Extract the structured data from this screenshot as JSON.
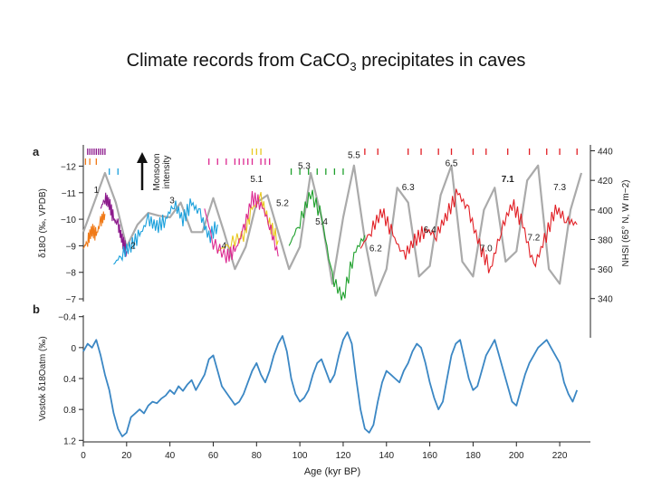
{
  "slide": {
    "title_pre": "Climate records from Ca",
    "title_co": "CO",
    "title_sub": "3",
    "title_post": " precipitates in caves"
  },
  "colors": {
    "nhsi": "#aaaaaa",
    "vostok": "#3b87c4",
    "hulu_orange": "#f07a18",
    "hulu_purple": "#8c1a8c",
    "hulu_blue": "#1aa0dc",
    "yellow": "#e8c81e",
    "pink": "#dc2890",
    "green": "#1ea02c",
    "red": "#e11e24"
  },
  "chart_data": [
    {
      "panel": "a",
      "type": "line",
      "title": "",
      "xlabel": "Age (kyr BP)",
      "xlim": [
        0,
        230
      ],
      "ylabel_left": "δ18O (‰, VPDB)",
      "ylim_left": [
        -12.8,
        -6.9
      ],
      "yticks_left": [
        -12,
        -11,
        -10,
        -9,
        -8,
        -7
      ],
      "ylabel_right": "NHSI (65° N, W m−2)",
      "ylim_right": [
        338,
        444
      ],
      "yticks_right": [
        340,
        360,
        380,
        400,
        420,
        440
      ],
      "monsoon_arrow_label": [
        "Monsoon",
        "intensity"
      ],
      "insolation": {
        "name": "NHSI",
        "x": [
          0,
          5,
          10,
          15,
          20,
          25,
          30,
          35,
          40,
          45,
          50,
          55,
          60,
          65,
          70,
          75,
          80,
          85,
          90,
          95,
          100,
          105,
          110,
          115,
          120,
          125,
          130,
          135,
          140,
          145,
          150,
          155,
          160,
          165,
          170,
          175,
          180,
          185,
          190,
          195,
          200,
          205,
          210,
          215,
          220,
          225,
          230
        ],
        "y": [
          385,
          405,
          425,
          405,
          375,
          390,
          398,
          396,
          395,
          405,
          385,
          385,
          408,
          385,
          360,
          375,
          405,
          410,
          385,
          360,
          375,
          425,
          395,
          350,
          395,
          430,
          380,
          342,
          360,
          415,
          405,
          355,
          362,
          410,
          430,
          365,
          355,
          400,
          415,
          365,
          372,
          420,
          430,
          360,
          350,
          400,
          425
        ]
      },
      "series": [
        {
          "name": "Hulu-orange",
          "color_key": "hulu_orange",
          "x": [
            0,
            2,
            4,
            6,
            8,
            10
          ],
          "y": [
            -8.9,
            -9.2,
            -9.6,
            -9.4,
            -9.9,
            -10.2
          ]
        },
        {
          "name": "Hulu-purple",
          "color_key": "hulu_purple",
          "x": [
            8,
            10,
            12,
            14,
            16,
            18,
            20
          ],
          "y": [
            -10.4,
            -10.8,
            -10.6,
            -10.0,
            -9.8,
            -9.2,
            -8.8
          ]
        },
        {
          "name": "Sanbao-blue",
          "color_key": "hulu_blue",
          "x": [
            14,
            18,
            22,
            26,
            30,
            34,
            38,
            42,
            46,
            50,
            54,
            58,
            62
          ],
          "y": [
            -8.3,
            -8.7,
            -9.0,
            -9.4,
            -10.0,
            -9.7,
            -10.0,
            -10.6,
            -10.0,
            -10.6,
            -10.2,
            -9.3,
            -9.8
          ]
        },
        {
          "name": "yellow",
          "color_key": "yellow",
          "x": [
            62,
            68,
            74,
            78,
            82,
            86,
            90
          ],
          "y": [
            -8.8,
            -9.1,
            -9.4,
            -10.4,
            -10.8,
            -9.8,
            -9.2
          ]
        },
        {
          "name": "pink",
          "color_key": "pink",
          "x": [
            56,
            60,
            66,
            70,
            74,
            78,
            82,
            86,
            90
          ],
          "y": [
            -10.4,
            -9.1,
            -8.6,
            -8.8,
            -9.6,
            -10.8,
            -10.6,
            -9.8,
            -8.6
          ]
        },
        {
          "name": "green",
          "color_key": "green",
          "x": [
            95,
            100,
            105,
            110,
            115,
            120,
            125,
            130
          ],
          "y": [
            -9.0,
            -9.9,
            -11.0,
            -10.1,
            -7.8,
            -7.0,
            -8.7,
            -9.4
          ]
        },
        {
          "name": "red",
          "color_key": "red",
          "x": [
            128,
            133,
            138,
            143,
            148,
            153,
            158,
            163,
            168,
            173,
            178,
            183,
            188,
            193,
            198,
            203,
            208,
            213,
            218,
            223,
            228
          ],
          "y": [
            -8.9,
            -9.6,
            -10.3,
            -9.4,
            -8.6,
            -9.2,
            -9.6,
            -9.4,
            -10.2,
            -11.0,
            -10.3,
            -9.0,
            -8.1,
            -9.6,
            -10.6,
            -9.8,
            -8.2,
            -9.2,
            -10.4,
            -10.0,
            -9.8
          ]
        }
      ],
      "annotations": [
        {
          "label": "1",
          "x": 6,
          "y": -11.0
        },
        {
          "label": "2",
          "x": 23,
          "y": -8.9
        },
        {
          "label": "3",
          "x": 41,
          "y": -10.6
        },
        {
          "label": "4",
          "x": 65,
          "y": -8.9
        },
        {
          "label": "5.1",
          "x": 80,
          "y": -11.4
        },
        {
          "label": "5.2",
          "x": 92,
          "y": -10.5
        },
        {
          "label": "5.3",
          "x": 102,
          "y": -11.9
        },
        {
          "label": "5.4",
          "x": 110,
          "y": -9.8
        },
        {
          "label": "5.5",
          "x": 125,
          "y": -12.3
        },
        {
          "label": "6.2",
          "x": 135,
          "y": -8.8
        },
        {
          "label": "6.3",
          "x": 150,
          "y": -11.1
        },
        {
          "label": "6.4",
          "x": 160,
          "y": -9.5
        },
        {
          "label": "6.5",
          "x": 170,
          "y": -12.0
        },
        {
          "label": "7.0",
          "x": 186,
          "y": -8.8
        },
        {
          "label": "7.1",
          "x": 196,
          "y": -11.4
        },
        {
          "label": "7.2",
          "x": 208,
          "y": -9.2
        },
        {
          "label": "7.3",
          "x": 220,
          "y": -11.1
        }
      ],
      "dating_rows": [
        {
          "color_key": "hulu_purple",
          "x": [
            2,
            3,
            4,
            5,
            6,
            7,
            8,
            9,
            10
          ]
        },
        {
          "color_key": "hulu_orange",
          "x": [
            1,
            3,
            6
          ]
        },
        {
          "color_key": "hulu_blue",
          "x": [
            12,
            16
          ]
        },
        {
          "color_key": "yellow",
          "x": [
            78,
            80,
            82
          ]
        },
        {
          "color_key": "pink",
          "x": [
            58,
            62,
            66,
            70,
            72,
            74,
            76,
            78,
            82,
            84,
            86
          ]
        },
        {
          "color_key": "green",
          "x": [
            96,
            100,
            104,
            108,
            112,
            116,
            120
          ]
        },
        {
          "color_key": "red",
          "x": [
            130,
            136,
            150,
            156,
            164,
            170,
            180,
            186,
            196,
            206,
            214,
            220,
            228
          ]
        }
      ]
    },
    {
      "panel": "b",
      "type": "line",
      "xlabel": "Age (kyr BP)",
      "xlim": [
        0,
        230
      ],
      "xticks": [
        0,
        20,
        40,
        60,
        80,
        100,
        120,
        140,
        160,
        180,
        200,
        220
      ],
      "ylabel": "Vostok δ18Oatm (‰)",
      "ylim": [
        1.22,
        -0.42
      ],
      "yticks": [
        -0.4,
        0,
        0.4,
        0.8,
        1.2
      ],
      "series": [
        {
          "name": "Vostok",
          "color_key": "vostok",
          "x": [
            0,
            2,
            4,
            6,
            8,
            10,
            12,
            14,
            16,
            18,
            20,
            22,
            24,
            26,
            28,
            30,
            32,
            34,
            36,
            38,
            40,
            42,
            44,
            46,
            48,
            50,
            52,
            54,
            56,
            58,
            60,
            62,
            64,
            66,
            68,
            70,
            72,
            74,
            76,
            78,
            80,
            82,
            84,
            86,
            88,
            90,
            92,
            94,
            96,
            98,
            100,
            102,
            104,
            106,
            108,
            110,
            112,
            114,
            116,
            118,
            120,
            122,
            124,
            126,
            128,
            130,
            132,
            134,
            136,
            138,
            140,
            142,
            144,
            146,
            148,
            150,
            152,
            154,
            156,
            158,
            160,
            162,
            164,
            166,
            168,
            170,
            172,
            174,
            176,
            178,
            180,
            182,
            184,
            186,
            188,
            190,
            192,
            194,
            196,
            198,
            200,
            202,
            204,
            206,
            208,
            210,
            212,
            214,
            216,
            218,
            220,
            222,
            224,
            226,
            228
          ],
          "y": [
            0.05,
            -0.05,
            0.0,
            -0.1,
            0.1,
            0.35,
            0.55,
            0.85,
            1.05,
            1.15,
            1.1,
            0.9,
            0.85,
            0.8,
            0.85,
            0.75,
            0.7,
            0.72,
            0.66,
            0.62,
            0.55,
            0.6,
            0.5,
            0.56,
            0.48,
            0.42,
            0.55,
            0.45,
            0.35,
            0.15,
            0.1,
            0.3,
            0.5,
            0.58,
            0.66,
            0.74,
            0.7,
            0.6,
            0.45,
            0.3,
            0.2,
            0.35,
            0.45,
            0.3,
            0.1,
            -0.05,
            -0.15,
            0.05,
            0.4,
            0.6,
            0.7,
            0.65,
            0.55,
            0.35,
            0.2,
            0.15,
            0.3,
            0.45,
            0.35,
            0.1,
            -0.1,
            -0.2,
            -0.05,
            0.4,
            0.8,
            1.05,
            1.1,
            1.0,
            0.7,
            0.45,
            0.3,
            0.35,
            0.4,
            0.45,
            0.3,
            0.2,
            0.05,
            -0.05,
            0.0,
            0.2,
            0.45,
            0.65,
            0.8,
            0.7,
            0.4,
            0.1,
            -0.05,
            -0.1,
            0.15,
            0.4,
            0.55,
            0.5,
            0.3,
            0.1,
            0.0,
            -0.1,
            0.1,
            0.3,
            0.5,
            0.7,
            0.75,
            0.55,
            0.35,
            0.2,
            0.1,
            0.0,
            -0.05,
            -0.1,
            0.0,
            0.1,
            0.2,
            0.45,
            0.6,
            0.7,
            0.55
          ]
        }
      ]
    }
  ]
}
